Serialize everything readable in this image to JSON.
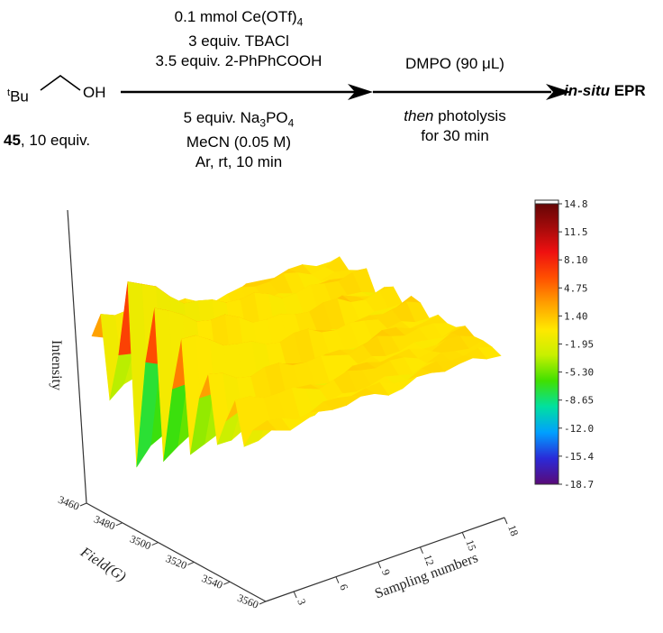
{
  "scheme": {
    "substrate": {
      "sup": "t",
      "group": "Bu",
      "oh": "OH",
      "bold_label": "45",
      "equiv": ", 10 equiv."
    },
    "step1_above": [
      {
        "text": "0.1 mmol Ce(OTf)",
        "sub": "4"
      },
      {
        "text": "3 equiv. TBACl",
        "sub": ""
      },
      {
        "text": "3.5 equiv. 2-PhPhCOOH",
        "sub": ""
      }
    ],
    "step1_below": {
      "line1_prefix": "5 equiv. Na",
      "line1_sub1": "3",
      "line1_mid": "PO",
      "line1_sub2": "4",
      "line2": "MeCN (0.05 M)",
      "line3": "Ar, rt, 10 min"
    },
    "step2_above": {
      "prefix": "DMPO (90 ",
      "mu": "μ",
      "suffix": "L)"
    },
    "step2_below": {
      "italic": "then",
      "rest": " photolysis",
      "line2": "for 30 min"
    },
    "product": {
      "italic_bold": "in-situ",
      "bold": " EPR"
    }
  },
  "chart_data": {
    "type": "surface3d",
    "zlabel": "Intensity",
    "ylabel": "Field(G)",
    "xlabel": "Sampling numbers",
    "y_ticks": [
      "3460",
      "3480",
      "3500",
      "3520",
      "3540",
      "3560"
    ],
    "x_ticks": [
      "3",
      "6",
      "9",
      "12",
      "15",
      "18"
    ],
    "x_range": [
      1,
      18
    ],
    "y_range": [
      3460,
      3560
    ],
    "z_range": [
      -18.7,
      14.8
    ],
    "colorbar_ticks": [
      "14.8",
      "11.5",
      "8.10",
      "4.75",
      "1.40",
      "-1.95",
      "-5.30",
      "-8.65",
      "-12.0",
      "-15.4",
      "-18.7"
    ],
    "colormap": [
      "#5a0a78",
      "#2a2ad8",
      "#00a0ff",
      "#00e0a0",
      "#40e000",
      "#c8f000",
      "#ffe800",
      "#ffa000",
      "#ff5000",
      "#ee1010",
      "#a00a0a",
      "#5c0505"
    ],
    "field_G": [
      3463,
      3468,
      3473,
      3478,
      3483,
      3488,
      3493,
      3498,
      3503,
      3508,
      3513,
      3518,
      3523,
      3528,
      3533,
      3538,
      3543,
      3548,
      3553,
      3558
    ],
    "peak_profile": [
      0,
      6.0,
      -8.0,
      0,
      14.0,
      -18.0,
      1.0,
      12.0,
      -14.0,
      0,
      9.0,
      -11.0,
      0.5,
      5.0,
      -6.0,
      0,
      3.0,
      -4.0,
      0,
      0
    ]
  }
}
